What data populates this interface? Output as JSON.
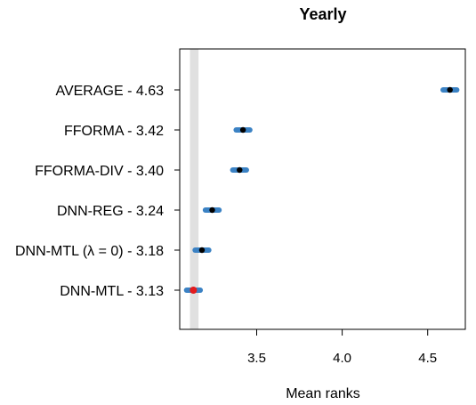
{
  "chart_data": {
    "type": "scatter",
    "title": "Yearly",
    "xlabel": "Mean ranks",
    "ylabel": "",
    "xlim": [
      3.05,
      4.72
    ],
    "xticks": [
      3.5,
      4.0,
      4.5
    ],
    "xtick_labels": [
      "3.5",
      "4.0",
      "4.5"
    ],
    "categories": [
      "AVERAGE - 4.63",
      "FFORMA - 3.42",
      "FFORMA-DIV - 3.40",
      "DNN-REG - 3.24",
      "DNN-MTL (λ = 0) - 3.18",
      "DNN-MTL - 3.13"
    ],
    "values": [
      4.63,
      3.42,
      3.4,
      3.24,
      3.18,
      3.13
    ],
    "ci_half_width": 0.04,
    "best_band": [
      3.11,
      3.16
    ],
    "grid": false,
    "legend": "none",
    "colors": {
      "interval": "#3b82c4",
      "point": "#000000",
      "best_point": "#e31a1c",
      "band": "#e0e0e0",
      "frame": "#000000"
    }
  }
}
